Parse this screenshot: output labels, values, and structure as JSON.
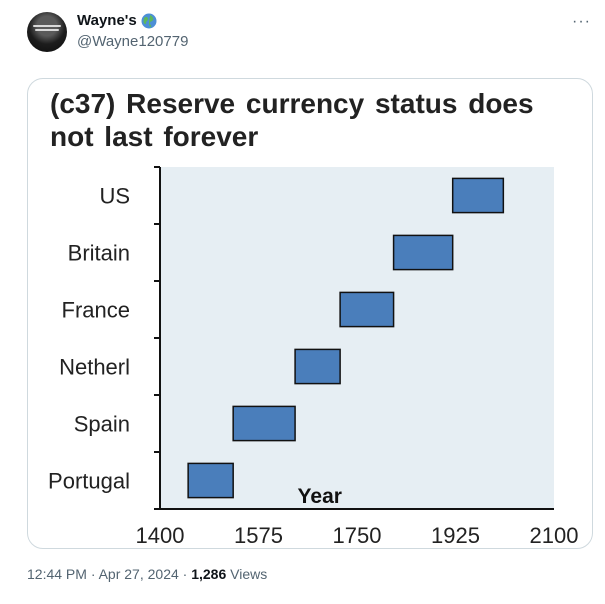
{
  "tweet": {
    "author": {
      "display_name": "Wayne's",
      "badge_icon": "globe-icon",
      "handle": "@Wayne120779"
    },
    "more_icon": "more-horizontal-icon",
    "timestamp": "12:44 PM · Apr 27, 2024 · ",
    "views_count": "1,286",
    "views_label": " Views"
  },
  "chart_data": {
    "type": "bar",
    "title": "(c37) Reserve currency status does not last forever",
    "xlabel": "Year",
    "ylabel": "",
    "xlim": [
      1400,
      2100
    ],
    "x_ticks": [
      "1400",
      "1575",
      "1750",
      "1925",
      "2100"
    ],
    "categories": [
      "US",
      "Britain",
      "France",
      "Netherl",
      "Spain",
      "Portugal"
    ],
    "ranges": [
      {
        "category": "US",
        "start": 1920,
        "end": 2010
      },
      {
        "category": "Britain",
        "start": 1815,
        "end": 1920
      },
      {
        "category": "France",
        "start": 1720,
        "end": 1815
      },
      {
        "category": "Netherl",
        "start": 1640,
        "end": 1720
      },
      {
        "category": "Spain",
        "start": 1530,
        "end": 1640
      },
      {
        "category": "Portugal",
        "start": 1450,
        "end": 1530
      }
    ],
    "bar_color": "#4a7ebb",
    "plot_background": "#e6eef3",
    "grid": false
  }
}
